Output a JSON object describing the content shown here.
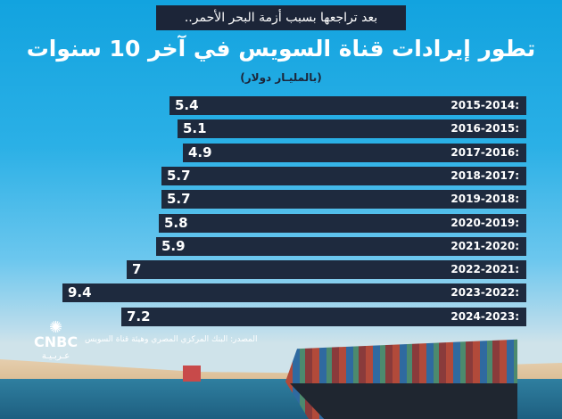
{
  "header": {
    "kicker": "بعد تراجعها بسبب أزمة البحر الأحمر..",
    "title": "تطور إيرادات قناة السويس في آخر 10 سنوات",
    "unit": "(بالمليـار دولار)"
  },
  "colors": {
    "bar": "#1e2a3e",
    "background": "#12a3df",
    "text": "#ffffff"
  },
  "chart_data": {
    "type": "bar",
    "orientation": "horizontal",
    "title": "تطور إيرادات قناة السويس في آخر 10 سنوات",
    "subtitle": "(بالمليـار دولار)",
    "categories": [
      "2015-2014:",
      "2016-2015:",
      "2017-2016:",
      "2018-2017:",
      "2019-2018:",
      "2020-2019:",
      "2021-2020:",
      "2022-2021:",
      "2023-2022:",
      "2024-2023:"
    ],
    "values": [
      5.4,
      5.1,
      4.9,
      5.7,
      5.7,
      5.8,
      5.9,
      7,
      9.4,
      7.2
    ],
    "value_labels": [
      "5.4",
      "5.1",
      "4.9",
      "5.7",
      "5.7",
      "5.8",
      "5.9",
      "7",
      "9.4",
      "7.2"
    ]
  },
  "footer": {
    "source": "المصدر: البنك المركزي المصري وهيئة قناة السويس",
    "logo": "CNBC",
    "logo_ar": "عـربـيـة"
  }
}
